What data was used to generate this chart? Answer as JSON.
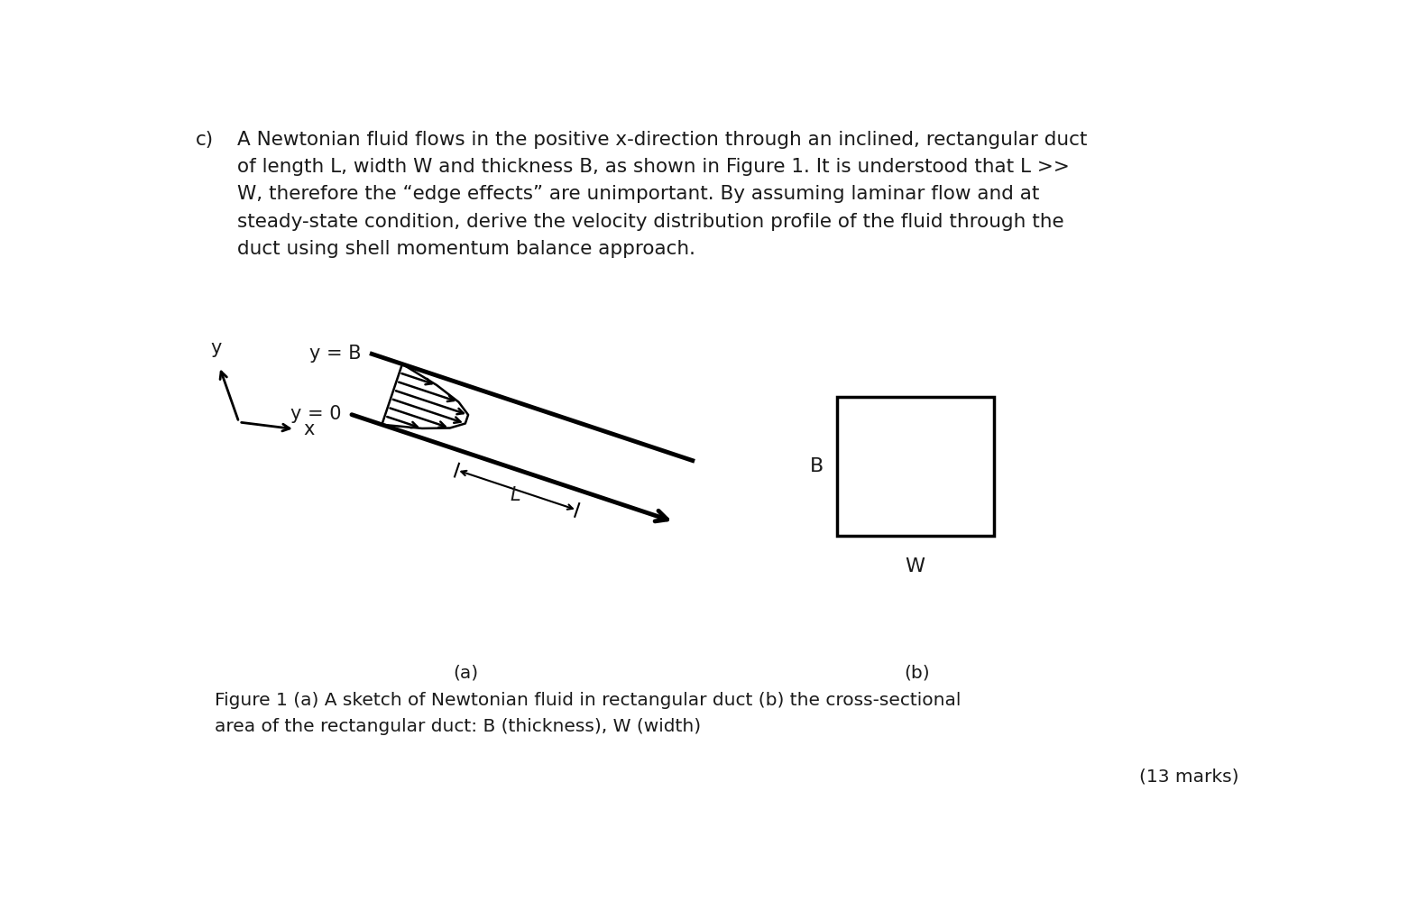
{
  "background_color": "#ffffff",
  "text_color": "#1a1a1a",
  "paragraph_c": "c)",
  "paragraph": "A Newtonian fluid flows in the positive x-direction through an inclined, rectangular duct\nof length L, width W and thickness B, as shown in Figure 1. It is understood that L >>\nW, therefore the “edge effects” are unimportant. By assuming laminar flow and at\nsteady-state condition, derive the velocity distribution profile of the fluid through the\nduct using shell momentum balance approach.",
  "figure_caption": "Figure 1 (a) A sketch of Newtonian fluid in rectangular duct (b) the cross-sectional\narea of the rectangular duct: B (thickness), W (width)",
  "marks": "(13 marks)",
  "font_size_para": 15.5,
  "font_size_caption": 14.5,
  "font_size_marks": 14.5,
  "font_size_labels": 15.0
}
